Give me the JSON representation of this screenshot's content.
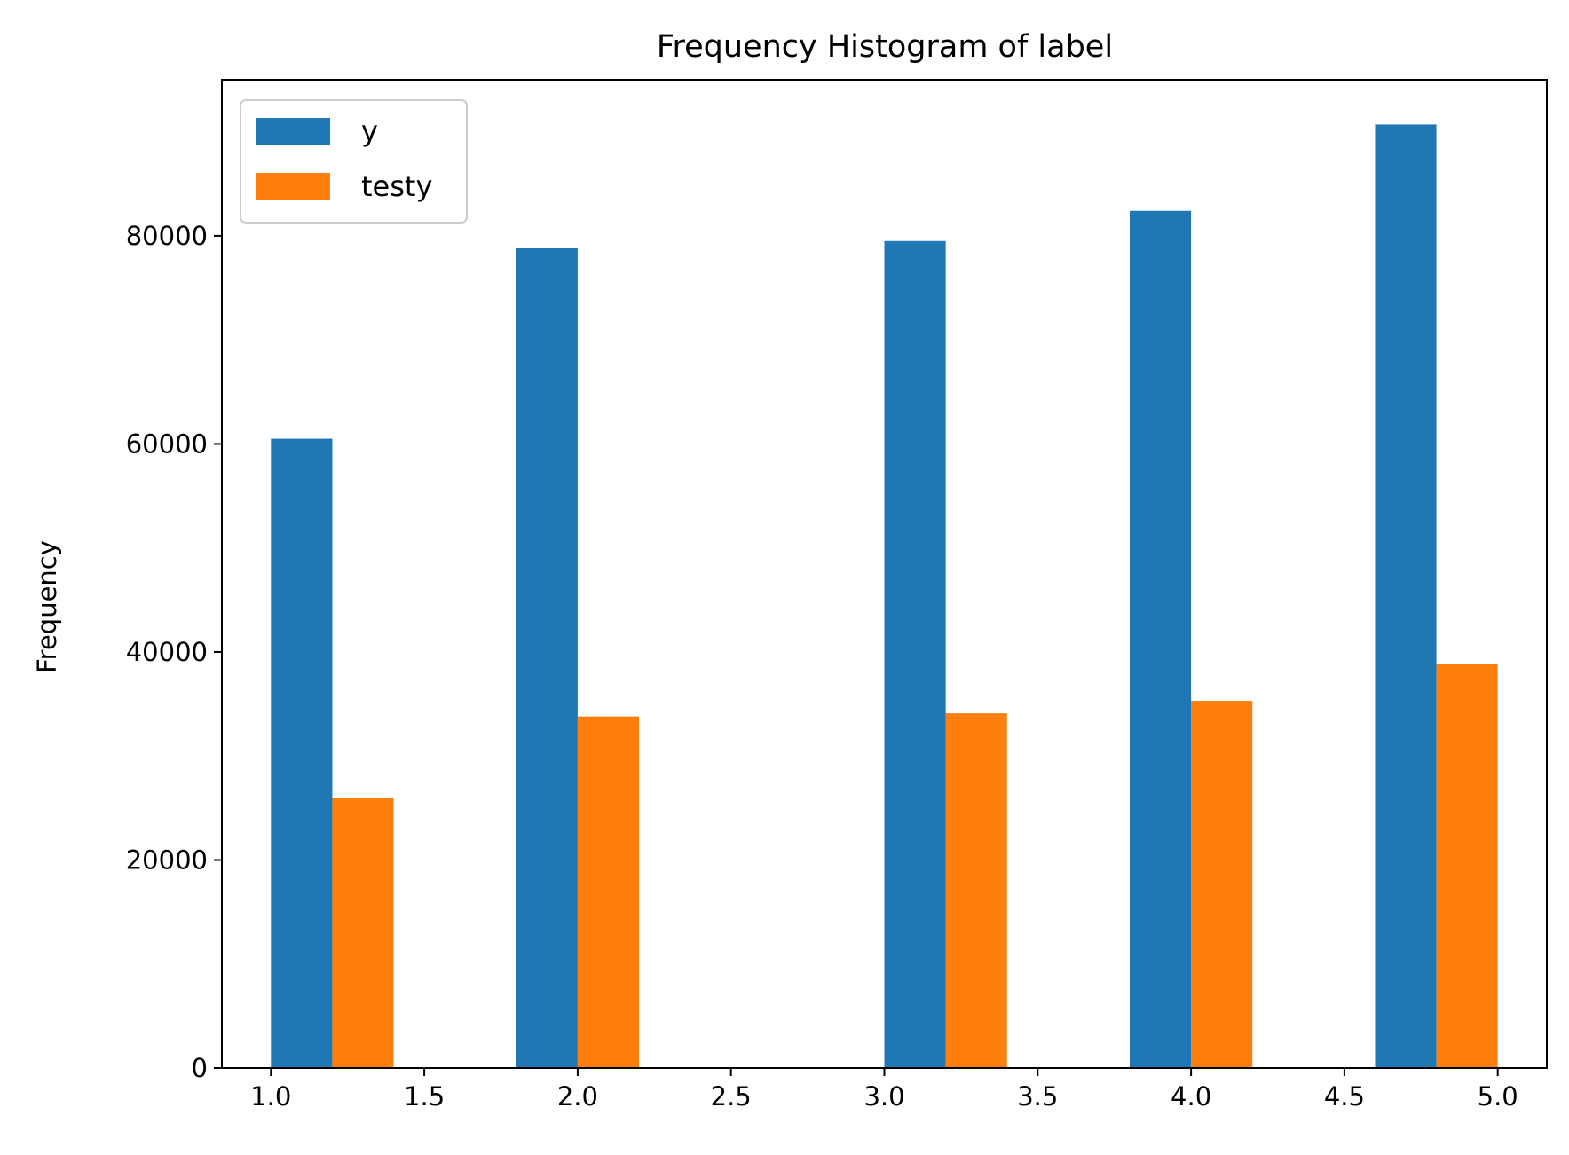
{
  "chart_data": {
    "type": "histogram",
    "title": "Frequency Histogram of label",
    "xlabel": "",
    "ylabel": "Frequency",
    "xlim": [
      0.84,
      5.16
    ],
    "ylim": [
      0,
      95000
    ],
    "grid": false,
    "legend": {
      "placement": "top-left"
    },
    "xticks": [
      1.0,
      1.5,
      2.0,
      2.5,
      3.0,
      3.5,
      4.0,
      4.5,
      5.0
    ],
    "xtick_labels": [
      "1.0",
      "1.5",
      "2.0",
      "2.5",
      "3.0",
      "3.5",
      "4.0",
      "4.5",
      "5.0"
    ],
    "yticks": [
      0,
      20000,
      40000,
      60000,
      80000
    ],
    "ytick_labels": [
      "0",
      "20000",
      "40000",
      "60000",
      "80000"
    ],
    "bin_edges": [
      1.0,
      1.4,
      1.8,
      2.2,
      2.6,
      3.0,
      3.4,
      3.8,
      4.2,
      4.6,
      5.0
    ],
    "series": [
      {
        "name": "y",
        "color": "#1f77b4",
        "counts": [
          60500,
          0,
          78800,
          0,
          0,
          79500,
          0,
          82400,
          0,
          90700
        ]
      },
      {
        "name": "testy",
        "color": "#ff7f0e",
        "counts": [
          26000,
          0,
          33800,
          0,
          0,
          34100,
          0,
          35300,
          0,
          38800
        ]
      }
    ]
  }
}
